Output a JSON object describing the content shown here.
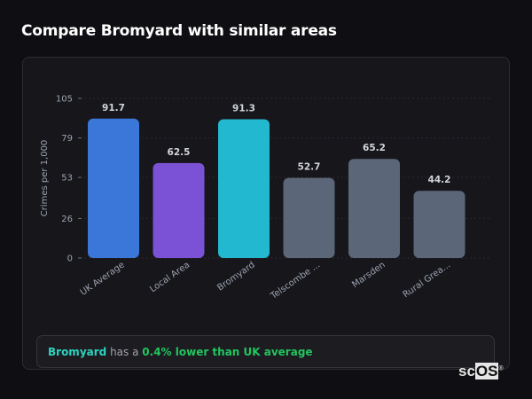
{
  "page": {
    "title": "Compare Bromyard with similar areas"
  },
  "summary": {
    "place": "Bromyard",
    "connector": "has a",
    "difference": "0.4% lower than UK average"
  },
  "logo": {
    "text_a": "sc",
    "text_b": "OS",
    "mark": "®"
  },
  "chart_data": {
    "type": "bar",
    "title": "",
    "xlabel": "",
    "ylabel": "Crimes per 1,000",
    "ylim": [
      0,
      105
    ],
    "yticks": [
      0,
      26,
      53,
      79,
      105
    ],
    "grid": true,
    "categories": [
      "UK Average",
      "Local Area",
      "Bromyard",
      "Telscombe ...",
      "Marsden",
      "Rural Grea..."
    ],
    "values": [
      91.7,
      62.5,
      91.3,
      52.7,
      65.2,
      44.2
    ],
    "value_labels": [
      "91.7",
      "62.5",
      "91.3",
      "52.7",
      "65.2",
      "44.2"
    ],
    "colors": [
      "#3b76d9",
      "#7b52d6",
      "#22b8cf",
      "#5b6678",
      "#5b6678",
      "#5b6678"
    ]
  }
}
